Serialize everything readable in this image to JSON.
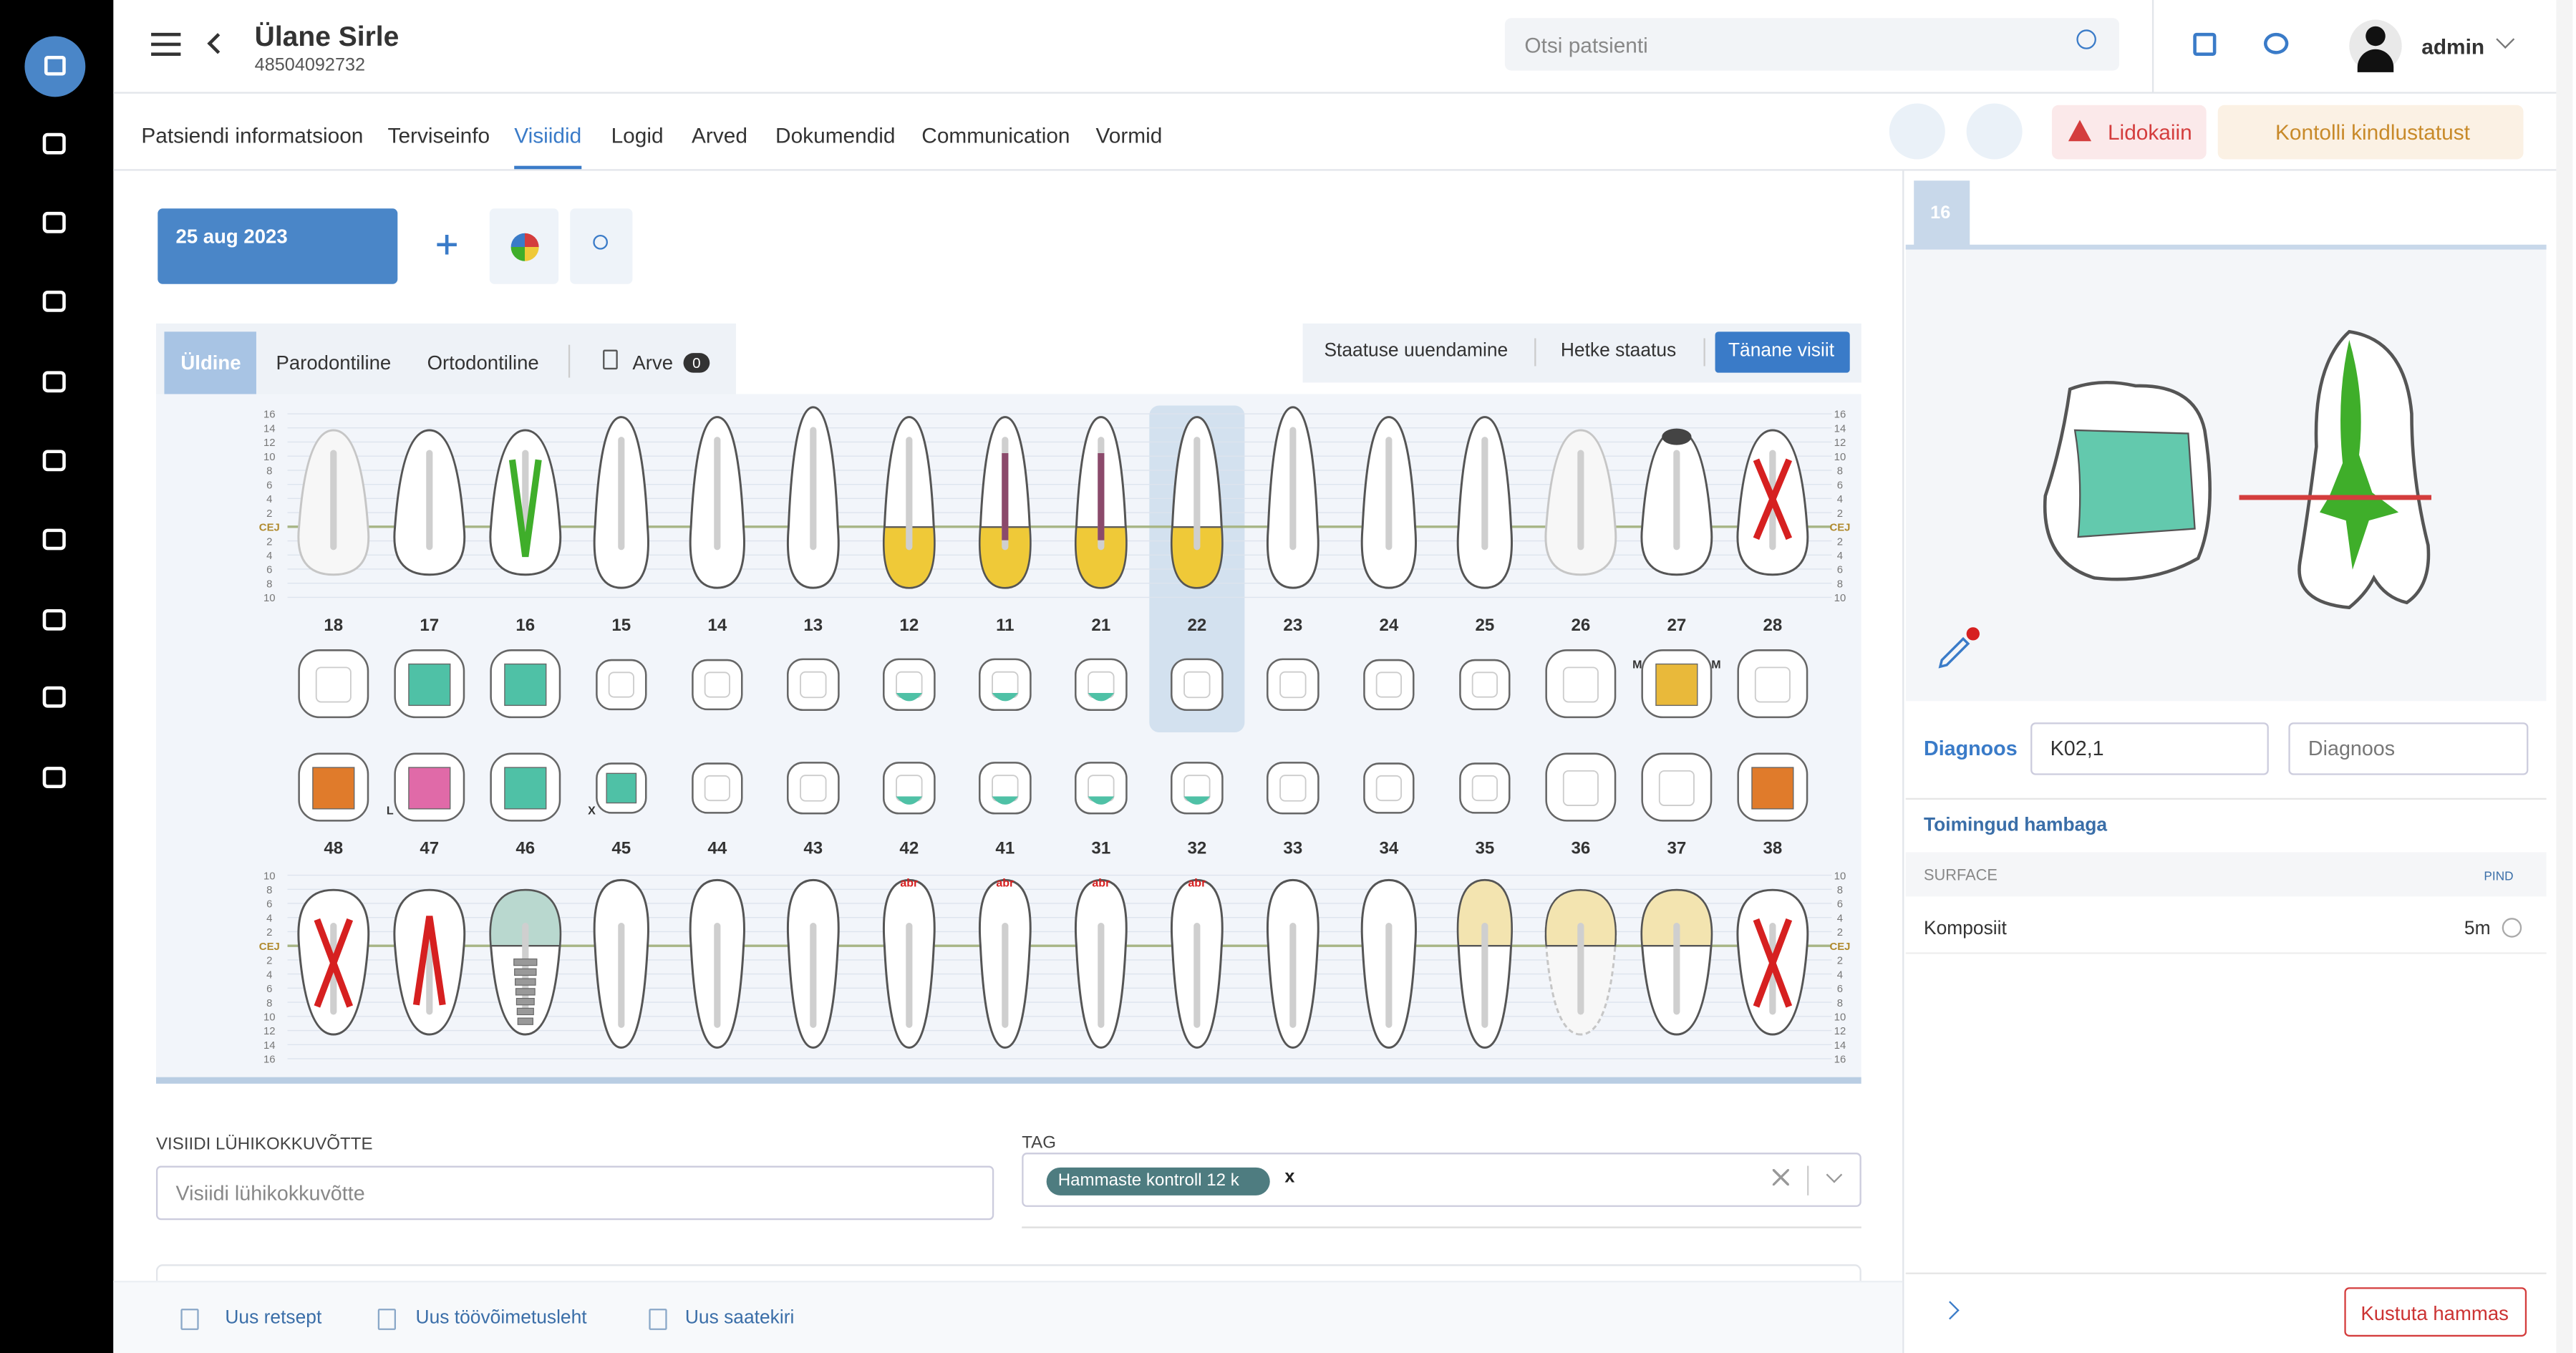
{
  "header": {
    "patient_name": "Ülane Sirle",
    "patient_id": "48504092732",
    "search_placeholder": "Otsi patsienti",
    "user": "admin"
  },
  "tabs": [
    "Patsiendi informatsioon",
    "Terviseinfo",
    "Visiidid",
    "Logid",
    "Arved",
    "Dokumendid",
    "Communication",
    "Vormid"
  ],
  "active_tab": 2,
  "actions": {
    "alert": "Lidokaiin",
    "insurance": "Kontolli kindlustatust"
  },
  "visit": {
    "date": "25 aug 2023"
  },
  "chart_tabs": [
    "Üldine",
    "Parodontiline",
    "Ortodontiline",
    "Arve"
  ],
  "active_chart_tab": 0,
  "invoice_count": 0,
  "status_buttons": [
    "Staatuse uuendamine",
    "Hetke staatus",
    "Tänane visiit"
  ],
  "active_status": 2,
  "upper_scale": [
    "16",
    "14",
    "12",
    "10",
    "8",
    "6",
    "4",
    "2",
    "CEJ",
    "2",
    "4",
    "6",
    "8",
    "10"
  ],
  "lower_scale": [
    "10",
    "8",
    "6",
    "4",
    "2",
    "CEJ",
    "2",
    "4",
    "6",
    "8",
    "10",
    "12",
    "14",
    "16"
  ],
  "selected_tooth": "22",
  "upper_teeth": [
    {
      "number": "18",
      "faded": true
    },
    {
      "number": "17",
      "occlusal_color": "#4fc1a6"
    },
    {
      "number": "16",
      "root_color": "#3fae2a",
      "occlusal_color": "#4fc1a6"
    },
    {
      "number": "15"
    },
    {
      "number": "14"
    },
    {
      "number": "13"
    },
    {
      "number": "12",
      "crown_color": "#efc938",
      "occlusal_color": "#4fc1a6"
    },
    {
      "number": "11",
      "crown_color": "#efc938",
      "post_color": "#8b4a6b",
      "occlusal_color": "#4fc1a6"
    },
    {
      "number": "21",
      "crown_color": "#efc938",
      "post_color": "#8b4a6b",
      "occlusal_color": "#4fc1a6"
    },
    {
      "number": "22",
      "crown_color": "#efc938"
    },
    {
      "number": "23"
    },
    {
      "number": "24"
    },
    {
      "number": "25"
    },
    {
      "number": "26",
      "faded": true
    },
    {
      "number": "27",
      "cap_color": "#444444",
      "occlusal_color": "#e9b93a",
      "marks": [
        "M",
        "M"
      ]
    },
    {
      "number": "28",
      "extracted": true
    }
  ],
  "lower_teeth": [
    {
      "number": "48",
      "extracted": true,
      "occlusal_color": "#e07b2b"
    },
    {
      "number": "47",
      "root_color": "#d62020",
      "occlusal_color": "#e06aa8",
      "marks": [
        "L"
      ]
    },
    {
      "number": "46",
      "implant": true,
      "crown_color": "#b9d8cf",
      "occlusal_color": "#4fc1a6"
    },
    {
      "number": "45",
      "occlusal_color": "#4fc1a6",
      "marks": [
        "X"
      ]
    },
    {
      "number": "44"
    },
    {
      "number": "43"
    },
    {
      "number": "42",
      "note": "abr",
      "occlusal_color": "#4fc1a6"
    },
    {
      "number": "41",
      "note": "abr",
      "occlusal_color": "#4fc1a6"
    },
    {
      "number": "31",
      "note": "abr",
      "occlusal_color": "#4fc1a6"
    },
    {
      "number": "32",
      "note": "abr",
      "occlusal_color": "#4fc1a6"
    },
    {
      "number": "33"
    },
    {
      "number": "34"
    },
    {
      "number": "35",
      "crown_color": "#f3e4b0"
    },
    {
      "number": "36",
      "crown_color": "#f3e4b0",
      "faded": true
    },
    {
      "number": "37",
      "crown_color": "#f3e4b0"
    },
    {
      "number": "38",
      "extracted": true,
      "occlusal_color": "#e07b2b"
    }
  ],
  "summary": {
    "label": "VISIIDI LÜHIKOKKUVÕTTE",
    "placeholder": "Visiidi lühikokkuvõtte"
  },
  "tag": {
    "label": "TAG",
    "value": "Hammaste kontroll 12 k",
    "remove": "x"
  },
  "footer": [
    "Uus retsept",
    "Uus töövõimetusleht",
    "Uus saatekiri"
  ],
  "panel": {
    "tooth": "16",
    "diagnosis_label": "Diagnoos",
    "diagnosis": "K02,1",
    "diagnosis_placeholder": "Diagnoos",
    "procedures_title": "Toimingud hambaga",
    "surface_header": "SURFACE",
    "pind_header": "PIND",
    "procedure": "Komposiit",
    "procedure_value": "5m",
    "delete": "Kustuta hammas"
  }
}
